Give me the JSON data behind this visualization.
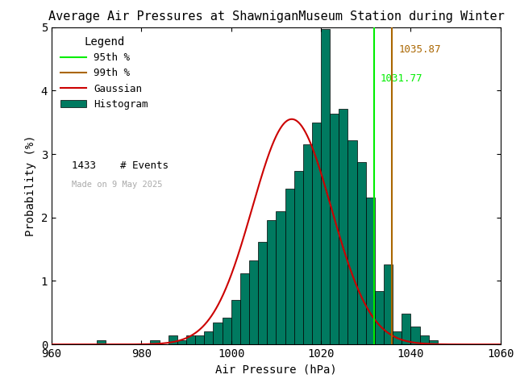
{
  "title": "Average Air Pressures at ShawniganMuseum Station during Winter",
  "xlabel": "Air Pressure (hPa)",
  "ylabel": "Probability (%)",
  "xlim": [
    960,
    1060
  ],
  "ylim": [
    0,
    5
  ],
  "xticks": [
    960,
    980,
    1000,
    1020,
    1040,
    1060
  ],
  "yticks": [
    0,
    1,
    2,
    3,
    4,
    5
  ],
  "n_events": 1433,
  "gauss_mean": 1013.5,
  "gauss_std": 8.8,
  "gauss_peak": 3.55,
  "pct95": 1031.77,
  "pct99": 1035.87,
  "pct95_color": "#00ee00",
  "pct99_color": "#aa6600",
  "gaussian_color": "#cc0000",
  "hist_color": "#007a60",
  "hist_edge_color": "#000000",
  "bin_width": 2,
  "date_text": "Made on 9 May 2025",
  "date_color": "#aaaaaa",
  "title_fontsize": 11,
  "axis_fontsize": 10,
  "tick_fontsize": 10,
  "background_color": "#ffffff",
  "hist_data": [
    [
      960,
      0.0
    ],
    [
      962,
      0.0
    ],
    [
      964,
      0.0
    ],
    [
      966,
      0.0
    ],
    [
      968,
      0.0
    ],
    [
      970,
      0.07
    ],
    [
      972,
      0.0
    ],
    [
      974,
      0.0
    ],
    [
      976,
      0.0
    ],
    [
      978,
      0.0
    ],
    [
      980,
      0.0
    ],
    [
      982,
      0.07
    ],
    [
      984,
      0.0
    ],
    [
      986,
      0.14
    ],
    [
      988,
      0.07
    ],
    [
      990,
      0.14
    ],
    [
      992,
      0.14
    ],
    [
      994,
      0.21
    ],
    [
      996,
      0.35
    ],
    [
      998,
      0.42
    ],
    [
      1000,
      0.7
    ],
    [
      1002,
      1.12
    ],
    [
      1004,
      1.33
    ],
    [
      1006,
      1.61
    ],
    [
      1008,
      1.96
    ],
    [
      1010,
      2.1
    ],
    [
      1012,
      2.45
    ],
    [
      1014,
      2.73
    ],
    [
      1016,
      3.15
    ],
    [
      1018,
      3.5
    ],
    [
      1020,
      4.97
    ],
    [
      1022,
      3.64
    ],
    [
      1024,
      3.71
    ],
    [
      1026,
      3.22
    ],
    [
      1028,
      2.87
    ],
    [
      1030,
      2.31
    ],
    [
      1032,
      0.84
    ],
    [
      1034,
      1.26
    ],
    [
      1036,
      0.21
    ],
    [
      1038,
      0.49
    ],
    [
      1040,
      0.28
    ],
    [
      1042,
      0.14
    ],
    [
      1044,
      0.07
    ],
    [
      1046,
      0.0
    ],
    [
      1048,
      0.0
    ],
    [
      1050,
      0.0
    ],
    [
      1052,
      0.0
    ],
    [
      1054,
      0.0
    ],
    [
      1056,
      0.0
    ],
    [
      1058,
      0.0
    ]
  ]
}
